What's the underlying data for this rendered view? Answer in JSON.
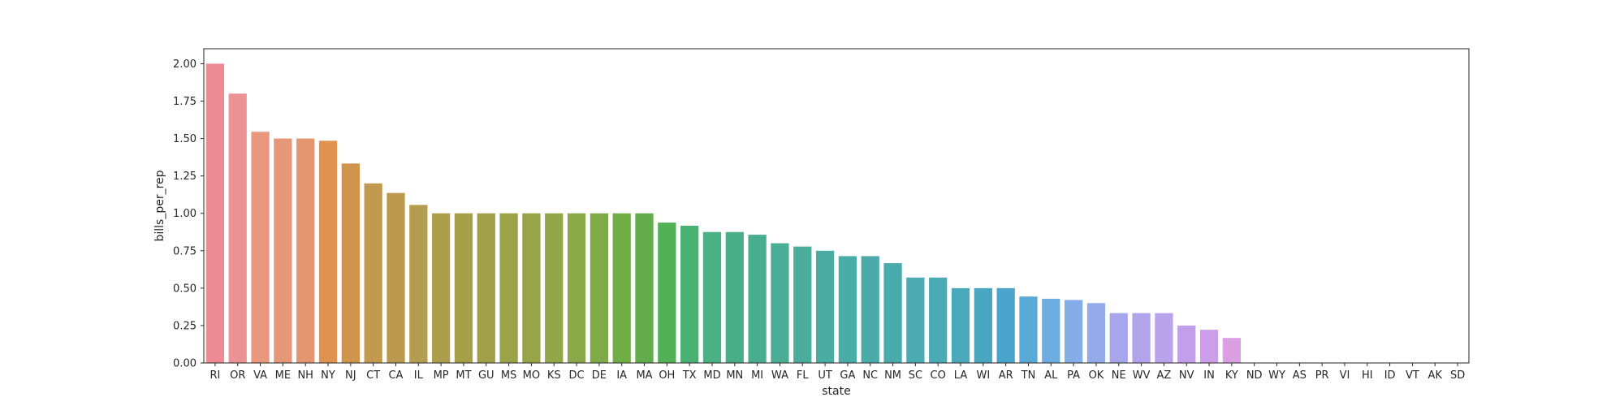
{
  "chart_data": {
    "type": "bar",
    "xlabel": "state",
    "ylabel": "bills_per_rep",
    "ylim": [
      0,
      2.1
    ],
    "yticks": [
      0.0,
      0.25,
      0.5,
      0.75,
      1.0,
      1.25,
      1.5,
      1.75,
      2.0
    ],
    "ytick_labels": [
      "0.00",
      "0.25",
      "0.50",
      "0.75",
      "1.00",
      "1.25",
      "1.50",
      "1.75",
      "2.00"
    ],
    "grid": false,
    "categories": [
      "RI",
      "OR",
      "VA",
      "ME",
      "NH",
      "NY",
      "NJ",
      "CT",
      "CA",
      "IL",
      "MP",
      "MT",
      "GU",
      "MS",
      "MO",
      "KS",
      "DC",
      "DE",
      "IA",
      "MA",
      "OH",
      "TX",
      "MD",
      "MN",
      "MI",
      "WA",
      "FL",
      "UT",
      "GA",
      "NC",
      "NM",
      "SC",
      "CO",
      "LA",
      "WI",
      "AR",
      "TN",
      "AL",
      "PA",
      "OK",
      "NE",
      "WV",
      "AZ",
      "NV",
      "IN",
      "KY",
      "ND",
      "WY",
      "AS",
      "PR",
      "VI",
      "HI",
      "ID",
      "VT",
      "AK",
      "SD"
    ],
    "values": [
      2.0,
      1.8,
      1.545,
      1.5,
      1.5,
      1.485,
      1.333,
      1.2,
      1.136,
      1.056,
      1.0,
      1.0,
      1.0,
      1.0,
      1.0,
      1.0,
      1.0,
      1.0,
      1.0,
      1.0,
      0.938,
      0.917,
      0.875,
      0.875,
      0.857,
      0.8,
      0.778,
      0.75,
      0.714,
      0.714,
      0.667,
      0.571,
      0.571,
      0.5,
      0.5,
      0.5,
      0.444,
      0.429,
      0.421,
      0.4,
      0.333,
      0.333,
      0.333,
      0.25,
      0.222,
      0.167,
      0,
      0,
      0,
      0,
      0,
      0,
      0,
      0,
      0,
      0
    ],
    "colors": [
      "#ec8b92",
      "#eb9294",
      "#e9977d",
      "#e69779",
      "#e49670",
      "#e09350",
      "#d0944a",
      "#c19a4f",
      "#bb9a4f",
      "#b49d4e",
      "#ac9e4a",
      "#a69f48",
      "#a0a048",
      "#9ba247",
      "#97a447",
      "#91a647",
      "#8aa847",
      "#80aa47",
      "#71ad47",
      "#63ad4d",
      "#52b057",
      "#4ab175",
      "#4bb083",
      "#4aaf88",
      "#4aae8e",
      "#4aad95",
      "#4bad9c",
      "#4aaca2",
      "#4aaca7",
      "#4aabaa",
      "#4aabad",
      "#4babb1",
      "#4babb5",
      "#4aa9bb",
      "#4aa7c2",
      "#4aa4cb",
      "#5aaad8",
      "#6cace0",
      "#85aee9",
      "#93aaeb",
      "#a7a5ec",
      "#b1a4ec",
      "#b9a2ec",
      "#c39eea",
      "#cc9de9",
      "#dc9fe3"
    ]
  }
}
